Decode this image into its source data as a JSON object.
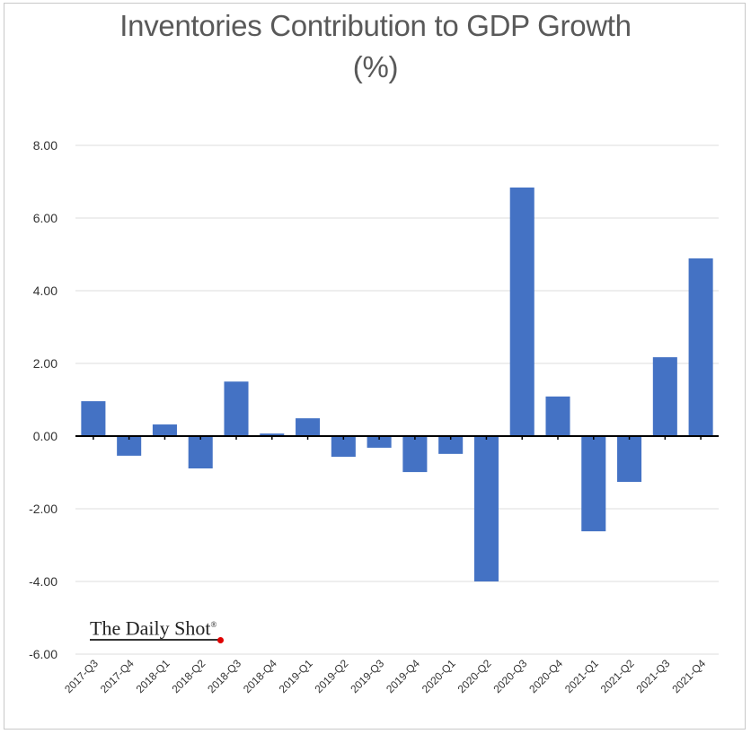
{
  "chart_data": {
    "type": "bar",
    "title": "Inventories Contribution to GDP Growth",
    "title_line2": "(%)",
    "xlabel": "",
    "ylabel": "",
    "ylim": [
      -6,
      8
    ],
    "yticks": [
      8,
      6,
      4,
      2,
      0,
      -2,
      -4,
      -6
    ],
    "ytick_labels": [
      "8.00",
      "6.00",
      "4.00",
      "2.00",
      "0.00",
      "-2.00",
      "-4.00",
      "-6.00"
    ],
    "grid": true,
    "legend": "none",
    "bar_color": "#4472C4",
    "categories": [
      "2017-Q3",
      "2017-Q4",
      "2018-Q1",
      "2018-Q2",
      "2018-Q3",
      "2018-Q4",
      "2019-Q1",
      "2019-Q2",
      "2019-Q3",
      "2019-Q4",
      "2020-Q1",
      "2020-Q2",
      "2020-Q3",
      "2020-Q4",
      "2021-Q1",
      "2021-Q2",
      "2021-Q3",
      "2021-Q4"
    ],
    "values": [
      0.96,
      -0.54,
      0.32,
      -0.89,
      1.5,
      0.07,
      0.49,
      -0.57,
      -0.32,
      -0.99,
      -0.49,
      -4.0,
      6.84,
      1.09,
      -2.62,
      -1.26,
      2.17,
      4.89
    ]
  },
  "watermark": {
    "text": "The Daily Shot",
    "mark": "®"
  }
}
